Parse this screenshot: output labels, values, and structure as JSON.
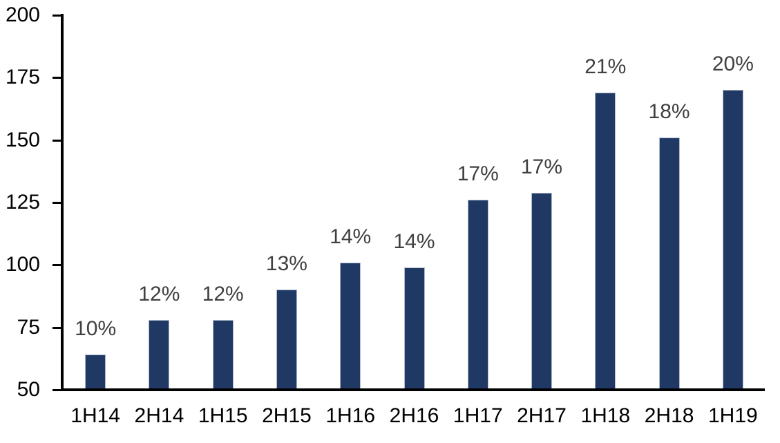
{
  "chart_data": {
    "type": "bar",
    "title": "",
    "xlabel": "",
    "ylabel": "",
    "categories": [
      "1H14",
      "2H14",
      "1H15",
      "2H15",
      "1H16",
      "2H16",
      "1H17",
      "2H17",
      "1H18",
      "2H18",
      "1H19"
    ],
    "values": [
      64,
      78,
      78,
      90,
      101,
      99,
      126,
      129,
      169,
      151,
      170
    ],
    "bar_labels": [
      "10%",
      "12%",
      "12%",
      "13%",
      "14%",
      "14%",
      "17%",
      "17%",
      "21%",
      "18%",
      "20%"
    ],
    "ylim": [
      50,
      200
    ],
    "yticks": [
      50,
      75,
      100,
      125,
      150,
      175,
      200
    ],
    "grid": "off",
    "legend": "none",
    "colors": {
      "bar_fill": "#1f3864",
      "bar_outline": "#aeb9cc",
      "data_label": "#404040",
      "axis_text": "#000000",
      "axis_line": "#000000",
      "background": "#ffffff"
    }
  }
}
